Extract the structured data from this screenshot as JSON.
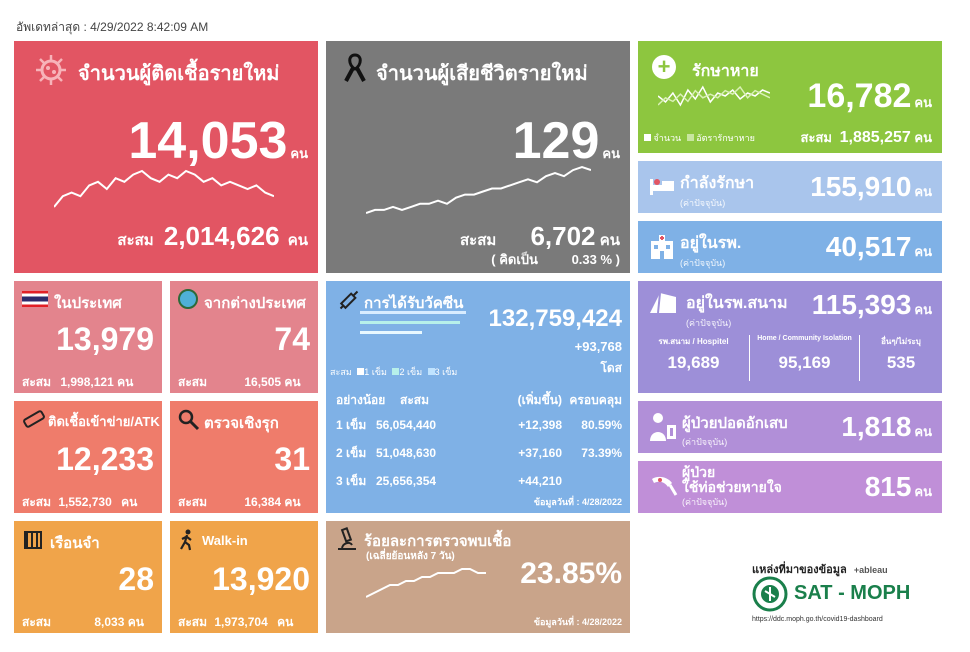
{
  "updated": "อัพเดทล่าสุด : 4/29/2022 8:42:09 AM",
  "unit": "คน",
  "accum_label": "สะสม",
  "new_cases": {
    "title": "จำนวนผู้ติดเชื้อรายใหม่",
    "value": "14,053",
    "accum": "2,014,626",
    "trend": [
      6,
      9,
      10,
      9,
      12,
      13,
      11,
      14,
      13,
      15,
      16,
      14,
      13,
      15,
      14,
      16,
      15,
      13,
      14,
      12,
      13,
      12,
      11,
      12,
      10,
      9
    ]
  },
  "deaths": {
    "title": "จำนวนผู้เสียชีวิตรายใหม่",
    "value": "129",
    "accum": "6,702",
    "percent_prefix": "( คิดเป็น",
    "percent": "0.33 % )",
    "trend": [
      2,
      3,
      3,
      4,
      3,
      4,
      5,
      5,
      6,
      5,
      7,
      8,
      8,
      9,
      10,
      10,
      11,
      12,
      13,
      12,
      14,
      15,
      14,
      16,
      17,
      16
    ]
  },
  "recovered": {
    "title": "รักษาหาย",
    "value": "16,782",
    "accum": "1,885,257",
    "legend_count": "จำนวน",
    "legend_rate": "อัตรารักษาหาย",
    "trend_a": [
      8,
      6,
      9,
      5,
      10,
      7,
      11,
      6,
      9,
      8,
      10,
      7,
      9,
      8,
      10,
      9
    ],
    "trend_b": [
      5,
      7,
      6,
      8,
      6,
      9,
      7,
      8,
      7,
      9,
      8,
      10,
      7,
      9,
      8,
      7
    ]
  },
  "treating": {
    "title": "กำลังรักษา",
    "sub": "(ค่าปัจจุบัน)",
    "value": "155,910"
  },
  "hospital": {
    "title": "อยู่ในรพ.",
    "sub": "(ค่าปัจจุบัน)",
    "value": "40,517"
  },
  "domestic": {
    "title": "ในประเทศ",
    "value": "13,979",
    "accum": "1,998,121"
  },
  "foreign": {
    "title": "จากต่างประเทศ",
    "value": "74",
    "accum": "16,505"
  },
  "atk": {
    "title": "ติดเชื้อเข้าข่าย/ATK",
    "value": "12,233",
    "accum": "1,552,730"
  },
  "proactive": {
    "title": "ตรวจเชิงรุก",
    "value": "31",
    "accum": "16,384"
  },
  "prison": {
    "title": "เรือนจำ",
    "value": "28",
    "accum": "8,033"
  },
  "walkin": {
    "title": "Walk-in",
    "value": "13,920",
    "accum": "1,973,704"
  },
  "vaccine": {
    "title": "การได้รับวัคซีน",
    "total": "132,759,424",
    "daily": "+93,768",
    "dose_unit": "โดส",
    "legend_prefix": "สะสม",
    "legend": [
      "1 เข็ม",
      "2 เข็ม",
      "3 เข็ม"
    ],
    "headers": [
      "อย่างน้อย",
      "สะสม",
      "(เพิ่มขึ้น)",
      "ครอบคลุม"
    ],
    "rows": [
      {
        "dose": "1 เข็ม",
        "total": "56,054,440",
        "inc": "+12,398",
        "cov": "80.59%"
      },
      {
        "dose": "2 เข็ม",
        "total": "51,048,630",
        "inc": "+37,160",
        "cov": "73.39%"
      },
      {
        "dose": "3 เข็ม",
        "total": "25,656,354",
        "inc": "+44,210",
        "cov": ""
      }
    ],
    "note": "ข้อมูลวันที่ : 4/28/2022"
  },
  "positivity": {
    "title": "ร้อยละการตรวจพบเชื้อ",
    "sub": "(เฉลี่ยย้อนหลัง 7 วัน)",
    "value": "23.85%",
    "note": "ข้อมูลวันที่ : 4/28/2022",
    "trend": [
      3,
      4,
      5,
      6,
      6,
      7,
      7,
      8,
      8,
      9,
      9,
      9,
      10,
      10,
      9,
      9
    ]
  },
  "field_hospital": {
    "title": "อยู่ในรพ.สนาม",
    "sub": "(ค่าปัจจุบัน)",
    "value": "115,393",
    "breakdown": [
      {
        "label": "รพ.สนาม / Hospitel",
        "value": "19,689"
      },
      {
        "label": "Home / Community Isolation",
        "value": "95,169"
      },
      {
        "label": "อื่นๆ/ไม่ระบุ",
        "value": "535"
      }
    ]
  },
  "pneumonia": {
    "title": "ผู้ป่วยปอดอักเสบ",
    "sub": "(ค่าปัจจุบัน)",
    "value": "1,818"
  },
  "ventilator": {
    "title1": "ผู้ป่วย",
    "title2": "ใช้ท่อช่วยหายใจ",
    "sub": "(ค่าปัจจุบัน)",
    "value": "815"
  },
  "source": {
    "label": "แหล่งที่มาของข้อมูล",
    "tableau": "+ableau",
    "brand": "SAT - MOPH",
    "url": "https://ddc.moph.go.th/covid19-dashboard"
  },
  "colors": {
    "red": "#e25563",
    "gray": "#7a7a7a",
    "green": "#8dc63f",
    "lightblue": "#a9c5ec",
    "pink": "#e3848d",
    "coral": "#ef7c6b",
    "orange": "#f0a44a",
    "tan": "#c9a48a",
    "skyblue": "#7fb1e6",
    "purple": "#9d8fd8",
    "mauve": "#c08fd8"
  }
}
